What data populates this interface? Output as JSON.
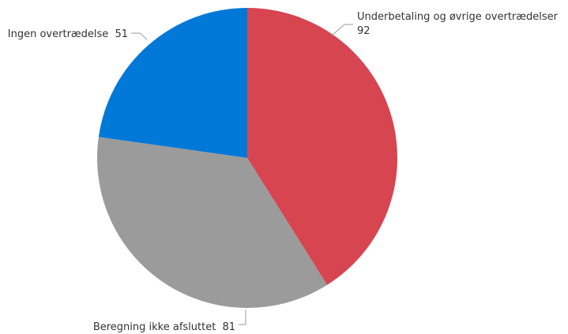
{
  "chart_data": {
    "type": "pie",
    "title": "",
    "legend": "none",
    "start_angle_deg": 0,
    "direction": "clockwise",
    "slices": [
      {
        "label": "Underbetaling og øvrige overtrædelser",
        "value": 92,
        "value_text": "92",
        "color": "#d64550"
      },
      {
        "label": "Beregning ikke afsluttet",
        "value": 81,
        "value_text": "81",
        "color": "#9b9b9b"
      },
      {
        "label": "Ingen overtrædelse",
        "value": 51,
        "value_text": "51",
        "color": "#0078d7"
      }
    ]
  }
}
